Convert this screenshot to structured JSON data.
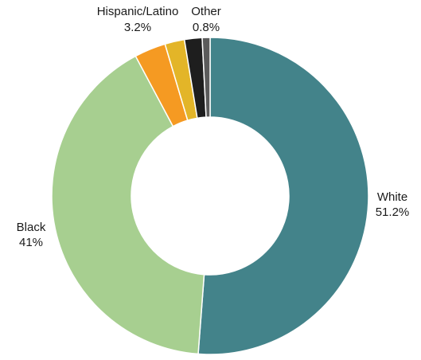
{
  "chart_data": {
    "type": "pie",
    "variant": "donut",
    "title": "",
    "slices": [
      {
        "name": "White",
        "value": 51.2,
        "value_label": "51.2%",
        "color": "#43838a",
        "labeled": true
      },
      {
        "name": "Black",
        "value": 41.0,
        "value_label": "41%",
        "color": "#a7cf90",
        "labeled": true
      },
      {
        "name": "Hispanic/Latino",
        "value": 3.2,
        "value_label": "3.2%",
        "color": "#f59a22",
        "labeled": true
      },
      {
        "name": "",
        "value": 2.0,
        "value_label": "",
        "color": "#e3b528",
        "labeled": false
      },
      {
        "name": "",
        "value": 1.8,
        "value_label": "",
        "color": "#1e1e1e",
        "labeled": false
      },
      {
        "name": "Other",
        "value": 0.8,
        "value_label": "0.8%",
        "color": "#5b5b5b",
        "labeled": true
      }
    ]
  }
}
